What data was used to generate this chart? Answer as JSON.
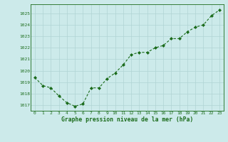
{
  "x": [
    0,
    1,
    2,
    3,
    4,
    5,
    6,
    7,
    8,
    9,
    10,
    11,
    12,
    13,
    14,
    15,
    16,
    17,
    18,
    19,
    20,
    21,
    22,
    23
  ],
  "y": [
    1019.4,
    1018.7,
    1018.5,
    1017.8,
    1017.2,
    1016.9,
    1017.1,
    1018.5,
    1018.5,
    1019.3,
    1019.8,
    1020.5,
    1021.4,
    1021.6,
    1021.6,
    1022.0,
    1022.2,
    1022.8,
    1022.8,
    1023.4,
    1023.8,
    1024.0,
    1024.8,
    1025.3
  ],
  "line_color": "#1a6b1a",
  "marker": "D",
  "marker_size": 2.0,
  "bg_color": "#cceaea",
  "grid_color": "#b0d4d4",
  "xlabel": "Graphe pression niveau de la mer (hPa)",
  "xlabel_color": "#1a6b1a",
  "tick_color": "#1a6b1a",
  "ylim": [
    1016.5,
    1025.8
  ],
  "yticks": [
    1017,
    1018,
    1019,
    1020,
    1021,
    1022,
    1023,
    1024,
    1025
  ],
  "xticks": [
    0,
    1,
    2,
    3,
    4,
    5,
    6,
    7,
    8,
    9,
    10,
    11,
    12,
    13,
    14,
    15,
    16,
    17,
    18,
    19,
    20,
    21,
    22,
    23
  ],
  "xlim": [
    -0.5,
    23.5
  ]
}
